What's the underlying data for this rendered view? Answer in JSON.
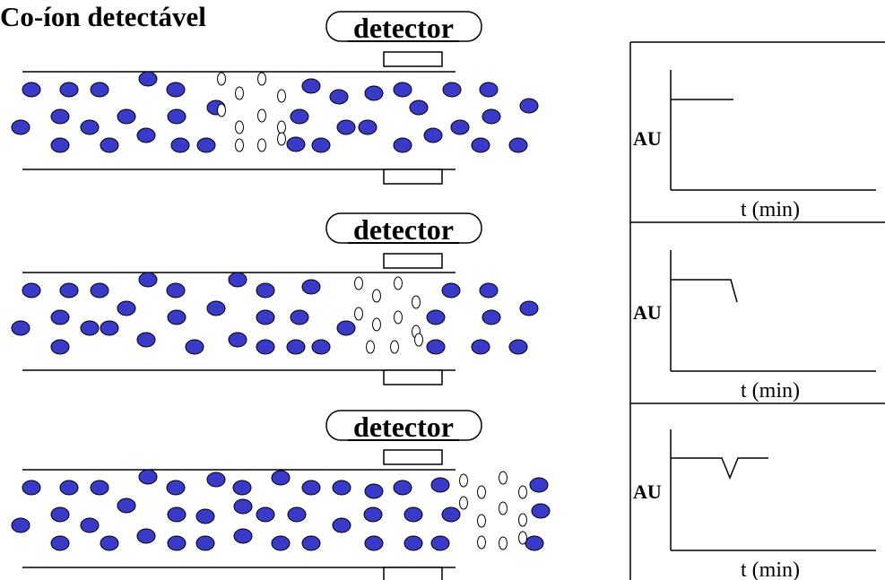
{
  "title": "Co-íon detectável",
  "panels": [
    {
      "detector_label": "detector",
      "graph": {
        "y_label": "AU",
        "x_label": "t (min)",
        "signal_shape": "flat baseline"
      }
    },
    {
      "detector_label": "detector",
      "graph": {
        "y_label": "AU",
        "x_label": "t (min)",
        "signal_shape": "baseline then drop"
      }
    },
    {
      "detector_label": "detector",
      "graph": {
        "y_label": "AU",
        "x_label": "t (min)",
        "signal_shape": "negative peak"
      }
    }
  ],
  "colors": {
    "background_ion": "#3a3ac8",
    "background_ion_outline": "#000000",
    "analyte_ion": "#ffffff",
    "line": "#000000"
  }
}
